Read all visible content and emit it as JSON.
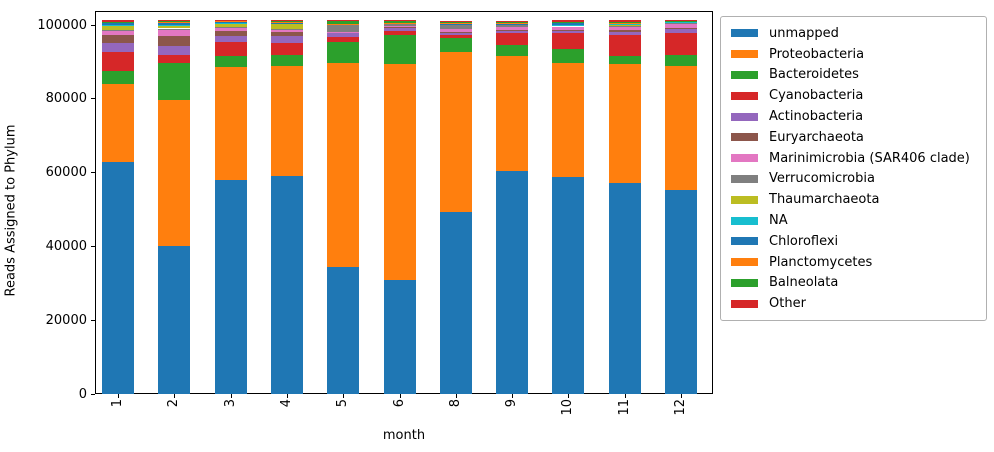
{
  "chart_data": {
    "type": "bar",
    "stacked": true,
    "title": "",
    "xlabel": "month",
    "ylabel": "Reads Assigned to Phylum",
    "categories": [
      "1",
      "2",
      "3",
      "4",
      "5",
      "6",
      "8",
      "9",
      "10",
      "11",
      "12"
    ],
    "yticks": [
      0,
      20000,
      40000,
      60000,
      80000,
      100000
    ],
    "ylim": [
      0,
      105000
    ],
    "grid": false,
    "legend_position": "outside-upper-right",
    "series": [
      {
        "name": "unmapped",
        "color": "#1f77b4",
        "values": [
          63000,
          40200,
          58000,
          59000,
          34500,
          30900,
          49200,
          60500,
          58700,
          57300,
          55200
        ]
      },
      {
        "name": "Proteobacteria",
        "color": "#ff7f0e",
        "values": [
          21100,
          39500,
          30500,
          30000,
          55300,
          58500,
          43400,
          31200,
          30900,
          32000,
          33800
        ]
      },
      {
        "name": "Bacteroidetes",
        "color": "#2ca02c",
        "values": [
          3300,
          10000,
          3000,
          3000,
          5700,
          7900,
          3800,
          3000,
          3900,
          2200,
          3000
        ]
      },
      {
        "name": "Cyanobacteria",
        "color": "#d62728",
        "values": [
          5300,
          2200,
          3800,
          3000,
          1350,
          1100,
          820,
          3000,
          4300,
          5900,
          5900
        ]
      },
      {
        "name": "Actinobacteria",
        "color": "#9467bd",
        "values": [
          2300,
          2400,
          1600,
          1900,
          1100,
          900,
          820,
          820,
          820,
          820,
          900
        ]
      },
      {
        "name": "Euryarchaeota",
        "color": "#8c564b",
        "values": [
          2250,
          2700,
          1600,
          1100,
          100,
          150,
          150,
          150,
          150,
          550,
          400
        ]
      },
      {
        "name": "Marinimicrobia (SAR406 clade)",
        "color": "#e377c2",
        "values": [
          1350,
          1900,
          820,
          820,
          100,
          350,
          820,
          820,
          820,
          820,
          1100
        ]
      },
      {
        "name": "Verrucomicrobia",
        "color": "#7f7f7f",
        "values": [
          150,
          150,
          150,
          150,
          1900,
          550,
          1080,
          550,
          300,
          250,
          300
        ]
      },
      {
        "name": "Thaumarchaeota",
        "color": "#bcbd22",
        "values": [
          1160,
          820,
          1100,
          1350,
          100,
          100,
          100,
          100,
          100,
          100,
          150
        ]
      },
      {
        "name": "NA",
        "color": "#17becf",
        "values": [
          100,
          150,
          100,
          100,
          50,
          50,
          100,
          100,
          100,
          500,
          100
        ]
      },
      {
        "name": "Chloroflexi",
        "color": "#1f77b4",
        "values": [
          650,
          500,
          100,
          100,
          50,
          50,
          100,
          100,
          500,
          100,
          100
        ]
      },
      {
        "name": "Planctomycetes",
        "color": "#ff7f0e",
        "values": [
          100,
          500,
          500,
          540,
          100,
          100,
          100,
          100,
          100,
          100,
          100
        ]
      },
      {
        "name": "Balneolata",
        "color": "#2ca02c",
        "values": [
          100,
          100,
          100,
          100,
          800,
          540,
          540,
          540,
          100,
          100,
          100
        ]
      },
      {
        "name": "Other",
        "color": "#d62728",
        "values": [
          540,
          300,
          100,
          100,
          100,
          100,
          150,
          150,
          500,
          500,
          300
        ]
      }
    ]
  }
}
